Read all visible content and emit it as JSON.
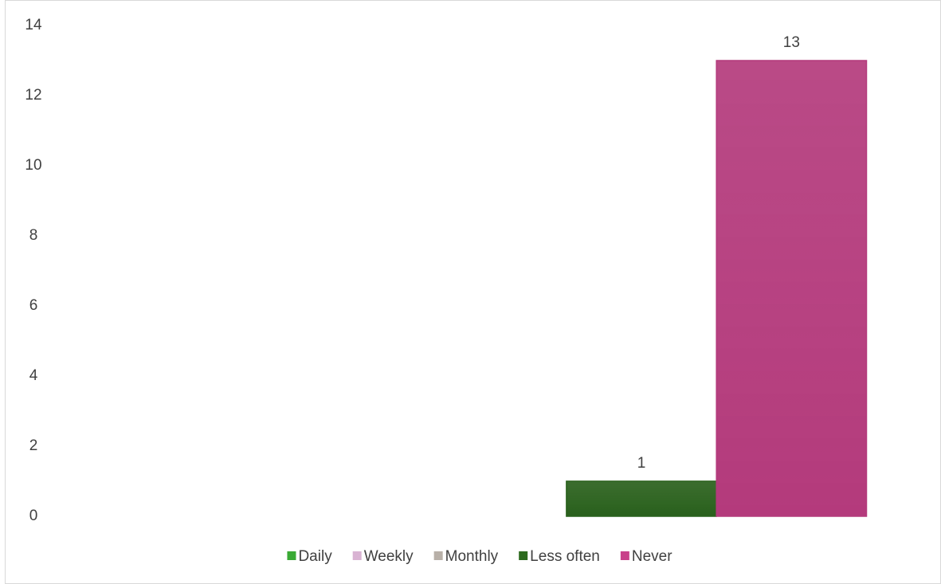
{
  "chart_data": {
    "type": "bar",
    "categories": [
      null
    ],
    "series": [
      {
        "name": "Daily",
        "color": "#3aaa35",
        "values": [
          null
        ]
      },
      {
        "name": "Weekly",
        "color": "#d9b3d3",
        "values": [
          null
        ]
      },
      {
        "name": "Monthly",
        "color": "#b8b0a8",
        "values": [
          null
        ]
      },
      {
        "name": "Less often",
        "color": "#2e6b1f",
        "values": [
          1
        ]
      },
      {
        "name": "Never",
        "color": "#c8418a",
        "values": [
          13
        ]
      }
    ],
    "ylim": [
      0,
      14
    ],
    "yticks": [
      0,
      2,
      4,
      6,
      8,
      10,
      12,
      14
    ],
    "grid": false,
    "legend": "bottom"
  }
}
